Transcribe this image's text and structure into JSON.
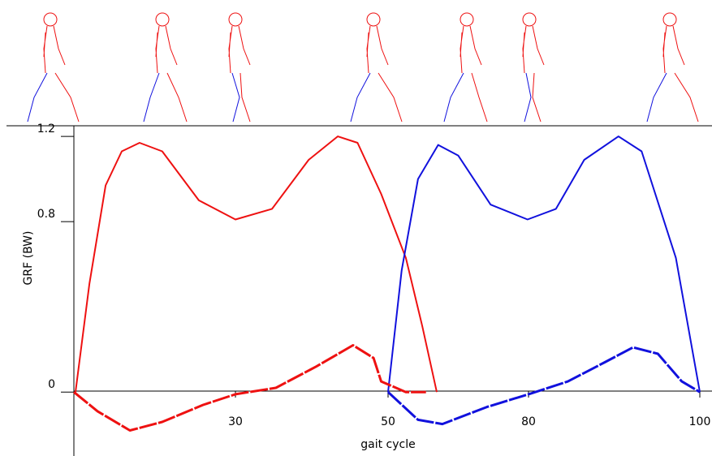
{
  "chart_data": {
    "type": "line",
    "xlabel": "gait cycle",
    "ylabel": "GRF (BW)",
    "xlim": [
      0,
      100
    ],
    "xticks": [
      30,
      50,
      80,
      100
    ],
    "xscale": "piecewise",
    "ylim": [
      -0.3,
      1.25
    ],
    "yticks": [
      0,
      0.8,
      1.2
    ],
    "series": [
      {
        "color": "#ee1111",
        "style": "solid",
        "x": [
          0.3,
          2.9,
          5.9,
          8.9,
          12.2,
          16.4,
          23.2,
          30,
          34.8,
          39.6,
          43.4,
          46,
          49.1,
          53.8,
          57.3,
          60.4
        ],
        "values": [
          0,
          0.51,
          0.97,
          1.13,
          1.17,
          1.13,
          0.9,
          0.81,
          0.86,
          1.09,
          1.2,
          1.17,
          0.93,
          0.63,
          0.31,
          0
        ]
      },
      {
        "color": "#1111dd",
        "style": "solid",
        "x": [
          50,
          52.9,
          56.4,
          60.7,
          65,
          71.9,
          79.8,
          83.2,
          86.5,
          90.5,
          93.2,
          97.2,
          100
        ],
        "values": [
          0,
          0.57,
          1,
          1.16,
          1.11,
          0.88,
          0.81,
          0.86,
          1.09,
          1.2,
          1.13,
          0.63,
          0
        ]
      },
      {
        "color": "#ee1111",
        "style": "dashed",
        "x": [
          0,
          4.4,
          10.4,
          16.4,
          24,
          30,
          35.3,
          40.6,
          45.4,
          48.1,
          49.1,
          53.8,
          58.1
        ],
        "values": [
          0,
          -0.09,
          -0.18,
          -0.14,
          -0.06,
          -0.01,
          0.02,
          0.12,
          0.22,
          0.16,
          0.05,
          0,
          0
        ]
      },
      {
        "color": "#1111dd",
        "style": "dashed",
        "x": [
          50,
          56.4,
          61.6,
          71.1,
          80,
          84.6,
          88.9,
          92.2,
          95.1,
          97.9,
          100
        ],
        "values": [
          0,
          -0.13,
          -0.15,
          -0.07,
          -0.01,
          0.05,
          0.14,
          0.21,
          0.18,
          0.05,
          0
        ]
      }
    ]
  }
}
